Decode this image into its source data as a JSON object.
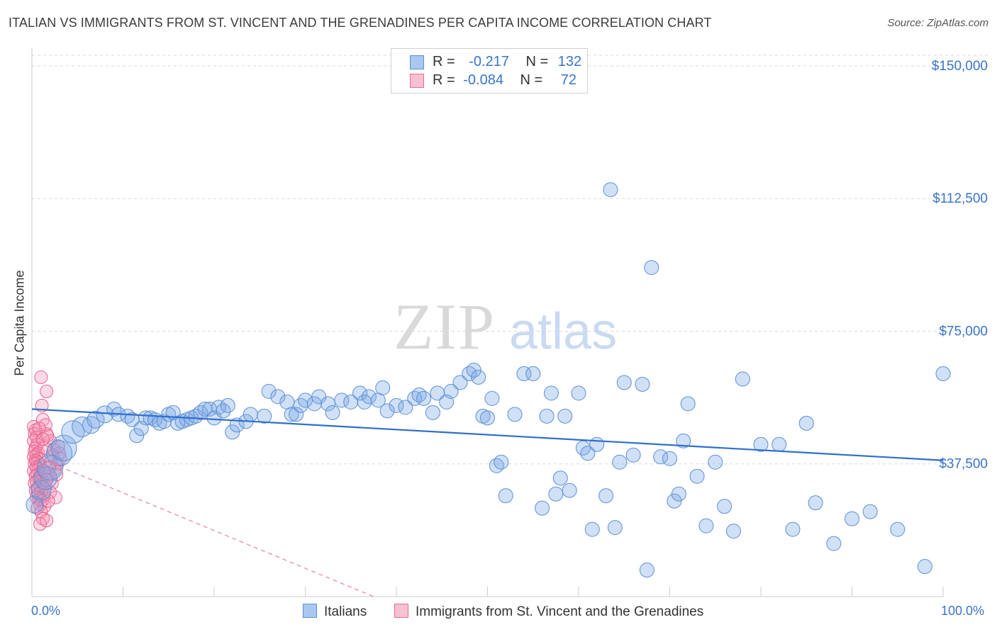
{
  "title": "ITALIAN VS IMMIGRANTS FROM ST. VINCENT AND THE GRENADINES PER CAPITA INCOME CORRELATION CHART",
  "source": "Source: ZipAtlas.com",
  "watermark": {
    "zip": "ZIP",
    "atlas": "atlas"
  },
  "legend": {
    "rows": [
      {
        "r_label": "R =",
        "r_value": "-0.217",
        "n_label": "N =",
        "n_value": "132",
        "color": "#a8c8f0",
        "border": "#5b8fd6"
      },
      {
        "r_label": "R =",
        "r_value": "-0.084",
        "n_label": "N =",
        "n_value": "72",
        "color": "#f8c0d0",
        "border": "#e07090"
      }
    ]
  },
  "bottom_legend": [
    {
      "label": "Italians",
      "color": "#a8c8f0",
      "border": "#5b8fd6"
    },
    {
      "label": "Immigrants from St. Vincent and the Grenadines",
      "color": "#f8c0d0",
      "border": "#e07090"
    }
  ],
  "chart_data": {
    "type": "scatter",
    "title": "ITALIAN VS IMMIGRANTS FROM ST. VINCENT AND THE GRENADINES PER CAPITA INCOME CORRELATION CHART",
    "xlabel": "",
    "ylabel": "Per Capita Income",
    "xlim": [
      0,
      100
    ],
    "ylim": [
      0,
      153000
    ],
    "x_tick_labels": [
      "0.0%",
      "100.0%"
    ],
    "y_ticks": [
      37500,
      75000,
      112500,
      150000
    ],
    "y_tick_labels": [
      "$37,500",
      "$75,000",
      "$112,500",
      "$150,000"
    ],
    "grid": true,
    "colors": {
      "italians": "#5b8fd6",
      "italians_fill": "rgba(120,165,230,0.35)",
      "svg": "#e8608a",
      "svg_fill": "rgba(245,150,180,0.35)",
      "trend_blue": "#2f6fcc",
      "trend_pink": "#e8809e",
      "grid": "#d8d8d8",
      "tick_text": "#3a74c8"
    },
    "series": [
      {
        "name": "Italians",
        "trend": [
          [
            0,
            53000
          ],
          [
            100,
            38500
          ]
        ],
        "points": [
          [
            0.3,
            25000,
            14
          ],
          [
            0.5,
            27000,
            12
          ],
          [
            0.8,
            30000,
            16
          ],
          [
            1.0,
            33000,
            18
          ],
          [
            1.5,
            35000,
            14
          ],
          [
            2.0,
            36000,
            20
          ],
          [
            2.5,
            38000,
            16
          ],
          [
            3.0,
            40000,
            14
          ],
          [
            3.5,
            42000,
            18
          ],
          [
            4.0,
            44000,
            12
          ],
          [
            4.5,
            46000,
            16
          ],
          [
            5.0,
            47000,
            14
          ],
          [
            5.5,
            48000,
            12
          ],
          [
            6.0,
            48500,
            16
          ],
          [
            6.5,
            49000,
            12
          ],
          [
            7.0,
            50000,
            14
          ],
          [
            7.5,
            51000,
            12
          ],
          [
            8.0,
            52000,
            14
          ],
          [
            9.0,
            50000,
            12
          ],
          [
            9.5,
            51000,
            12
          ],
          [
            10.0,
            53000,
            12
          ],
          [
            10.5,
            51500,
            10
          ],
          [
            11.0,
            50500,
            10
          ],
          [
            12.0,
            46000,
            10
          ],
          [
            12.5,
            48000,
            10
          ],
          [
            13.0,
            49500,
            10
          ],
          [
            14.0,
            50500,
            10
          ],
          [
            15.0,
            51000,
            10
          ],
          [
            16.0,
            51500,
            10
          ],
          [
            17.0,
            52000,
            10
          ],
          [
            17.5,
            49500,
            10
          ],
          [
            18.0,
            50000,
            10
          ],
          [
            18.5,
            49500,
            10
          ],
          [
            19.0,
            51000,
            10
          ],
          [
            19.5,
            50000,
            10
          ],
          [
            20.0,
            50500,
            10
          ],
          [
            21.0,
            51500,
            10
          ],
          [
            22.0,
            52000,
            10
          ],
          [
            22.5,
            53000,
            10
          ],
          [
            23.0,
            54000,
            10
          ],
          [
            24.0,
            54500,
            10
          ],
          [
            25.0,
            53500,
            10
          ],
          [
            25.5,
            52000,
            10
          ],
          [
            27.0,
            54500,
            10
          ],
          [
            28.0,
            52500,
            10
          ],
          [
            29.0,
            56000,
            10
          ],
          [
            30.0,
            57000,
            10
          ],
          [
            30.5,
            55000,
            10
          ],
          [
            31.0,
            52500,
            10
          ],
          [
            32.0,
            53000,
            10
          ],
          [
            33.0,
            55000,
            10
          ],
          [
            34.0,
            54500,
            10
          ],
          [
            35.0,
            56500,
            10
          ],
          [
            35.5,
            53500,
            10
          ],
          [
            36.0,
            55500,
            10
          ],
          [
            37.0,
            55000,
            10
          ],
          [
            38.0,
            56000,
            10
          ],
          [
            39.0,
            57000,
            10
          ],
          [
            40.0,
            55000,
            10
          ],
          [
            41.0,
            54000,
            10
          ],
          [
            42.0,
            53000,
            10
          ],
          [
            43.0,
            55500,
            10
          ],
          [
            44.0,
            57000,
            10
          ],
          [
            45.0,
            59000,
            10
          ],
          [
            46.0,
            60000,
            10
          ],
          [
            47.0,
            58000,
            10
          ],
          [
            48.0,
            55000,
            10
          ],
          [
            49.0,
            56000,
            10
          ],
          [
            50.0,
            58500,
            10
          ],
          [
            51.0,
            57000,
            10
          ],
          [
            52.0,
            56000,
            10
          ],
          [
            53.0,
            57000,
            10
          ],
          [
            54.0,
            55000,
            10
          ],
          [
            55.0,
            52500,
            10
          ],
          [
            56.0,
            50000,
            10
          ],
          [
            57.0,
            51000,
            10
          ],
          [
            58.0,
            57000,
            10
          ],
          [
            59.0,
            60000,
            10
          ],
          [
            60.0,
            59000,
            10
          ],
          [
            61.0,
            62000,
            10
          ],
          [
            62.0,
            63000,
            10
          ],
          [
            63.0,
            62500,
            10
          ],
          [
            64.0,
            54000,
            10
          ],
          [
            65.0,
            55500,
            10
          ],
          [
            66.0,
            63500,
            10
          ],
          [
            67.0,
            63000,
            10
          ],
          [
            68.0,
            56500,
            10
          ],
          [
            69.0,
            50000,
            10
          ],
          [
            70.0,
            55500,
            10
          ],
          [
            71.0,
            60000,
            10
          ],
          [
            72.0,
            58000,
            10
          ],
          [
            73.0,
            51000,
            10
          ],
          [
            74.0,
            59000,
            10
          ],
          [
            75.0,
            55500,
            10
          ],
          [
            76.0,
            50000,
            10
          ],
          [
            77.0,
            63500,
            10
          ],
          [
            78.0,
            64500,
            10
          ],
          [
            79.0,
            63000,
            10
          ],
          [
            80.0,
            60000,
            10
          ],
          [
            81.0,
            59000,
            10
          ],
          [
            82.0,
            55000,
            10
          ],
          [
            83.0,
            56500,
            10
          ],
          [
            84.0,
            56000,
            10
          ]
        ],
        "points_abs": [
          [
            50.0,
            77500
          ],
          [
            47.0,
            57000
          ],
          [
            54.0,
            58000
          ],
          [
            58.0,
            57000
          ],
          [
            55.0,
            64000
          ],
          [
            56.0,
            62000
          ],
          [
            62.0,
            58500
          ],
          [
            63.0,
            57500
          ],
          [
            65.0,
            57500
          ],
          [
            47.0,
            49000
          ],
          [
            36.0,
            48500
          ],
          [
            38.0,
            48500
          ],
          [
            40.0,
            48000
          ],
          [
            41.0,
            46500
          ],
          [
            42.0,
            42500
          ],
          [
            42.0,
            57000
          ],
          [
            43.0,
            54500
          ],
          [
            44.0,
            60500
          ],
          [
            46.0,
            55000
          ],
          [
            46.0,
            46500
          ],
          [
            48.0,
            56000
          ],
          [
            50.0,
            49000
          ],
          [
            50.0,
            49500
          ],
          [
            52.0,
            52000
          ],
          [
            52.0,
            51500
          ],
          [
            53.0,
            43000
          ],
          [
            57.0,
            59000
          ],
          [
            58.0,
            58000
          ],
          [
            59.0,
            61500
          ],
          [
            60.0,
            55000
          ],
          [
            61.5,
            63000
          ],
          [
            63.0,
            58000
          ],
          [
            64.0,
            58000
          ],
          [
            70.0,
            55000
          ],
          [
            75.0,
            48000
          ],
          [
            79.0,
            43000
          ],
          [
            84.0,
            48500
          ],
          [
            89.0,
            62000
          ],
          [
            97.0,
            47500
          ],
          [
            98.0,
            64000
          ]
        ]
      },
      {
        "name": "Immigrants from St. Vincent and the Grenadines",
        "trend": [
          [
            0,
            40000
          ],
          [
            37.5,
            0
          ]
        ],
        "points": []
      }
    ]
  }
}
